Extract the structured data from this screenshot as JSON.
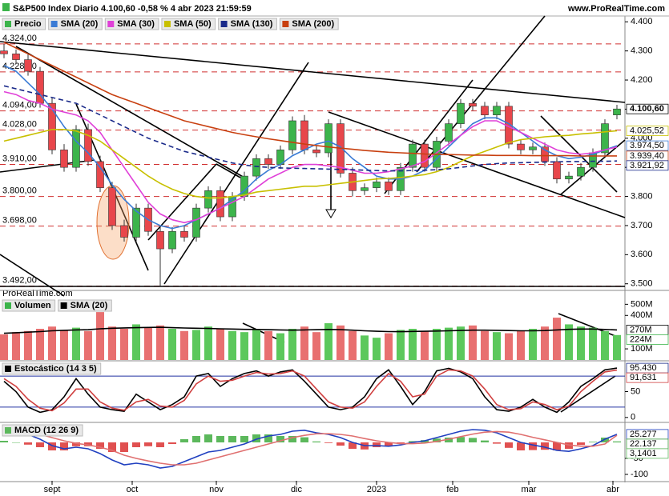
{
  "chart_data": [
    {
      "type": "candlestick",
      "title": "S&P500 Index Diario 4.100,60 -0,58 % 4 abr 2023 21:59:59",
      "source": "www.ProRealTime.com",
      "watermark": "ProRealTime.com",
      "name": "Precio",
      "up_color": "#3cb44b",
      "down_color": "#e8464b",
      "x": [
        1,
        4,
        7,
        10,
        13,
        16,
        19,
        22,
        25,
        28,
        31,
        34,
        37,
        40,
        43,
        46,
        49,
        52,
        55,
        58,
        61,
        64,
        67,
        70,
        73,
        76,
        79,
        82,
        85,
        88,
        91,
        94,
        97,
        100,
        103,
        106,
        109,
        112,
        115,
        118,
        121,
        124,
        127,
        130,
        133,
        136,
        139,
        142,
        145,
        148,
        151,
        154
      ],
      "open": [
        4300,
        4290,
        4270,
        4230,
        4120,
        3960,
        3900,
        4030,
        3920,
        3830,
        3700,
        3660,
        3760,
        3680,
        3620,
        3680,
        3660,
        3760,
        3820,
        3730,
        3800,
        3870,
        3930,
        3910,
        3960,
        4060,
        3960,
        3950,
        4050,
        3880,
        3820,
        3830,
        3850,
        3820,
        3900,
        3980,
        3900,
        3990,
        4050,
        4120,
        4110,
        4080,
        4110,
        3980,
        3960,
        3970,
        3920,
        3860,
        3870,
        3900,
        3950,
        4080
      ],
      "high": [
        4324,
        4305,
        4290,
        4245,
        4140,
        3980,
        4045,
        4050,
        3940,
        3850,
        3720,
        3775,
        3775,
        3700,
        3695,
        3700,
        3775,
        3835,
        3835,
        3815,
        3885,
        3945,
        3945,
        3975,
        4075,
        4080,
        3975,
        4065,
        4065,
        3900,
        3845,
        3865,
        3865,
        3915,
        3995,
        3995,
        4005,
        4065,
        4135,
        4135,
        4125,
        4125,
        4125,
        3995,
        3985,
        3985,
        3935,
        3885,
        3915,
        3965,
        4065,
        4115
      ],
      "low": [
        4275,
        4255,
        4215,
        4105,
        3945,
        3885,
        3885,
        3905,
        3815,
        3685,
        3645,
        3645,
        3665,
        3492,
        3605,
        3645,
        3645,
        3745,
        3715,
        3715,
        3785,
        3855,
        3895,
        3895,
        3945,
        3945,
        3935,
        3935,
        3865,
        3800,
        3805,
        3815,
        3805,
        3805,
        3885,
        3885,
        3885,
        3975,
        4035,
        4095,
        4065,
        4065,
        3965,
        3945,
        3945,
        3905,
        3845,
        3845,
        3855,
        3885,
        3935,
        4065
      ],
      "close": [
        4290,
        4270,
        4230,
        4120,
        3960,
        3900,
        4030,
        3920,
        3830,
        3700,
        3660,
        3760,
        3680,
        3620,
        3680,
        3660,
        3760,
        3820,
        3730,
        3800,
        3870,
        3930,
        3910,
        3960,
        4060,
        3960,
        3950,
        4050,
        3880,
        3820,
        3830,
        3850,
        3820,
        3900,
        3980,
        3900,
        3990,
        4050,
        4120,
        4110,
        4080,
        4110,
        3980,
        3960,
        3970,
        3920,
        3860,
        3870,
        3900,
        3950,
        4050,
        4100.6
      ],
      "last_value_label": "4.100,60",
      "xlim": [
        0,
        156
      ],
      "xticks": [
        {
          "value": 13,
          "label": "sept"
        },
        {
          "value": 33,
          "label": "oct"
        },
        {
          "value": 54,
          "label": "nov"
        },
        {
          "value": 74,
          "label": "dic"
        },
        {
          "value": 94,
          "label": "2023"
        },
        {
          "value": 113,
          "label": "feb"
        },
        {
          "value": 132,
          "label": "mar"
        },
        {
          "value": 153,
          "label": "abr"
        }
      ],
      "ylim": [
        3480,
        4420
      ],
      "yticks": [
        {
          "value": 3500,
          "label": "3.500"
        },
        {
          "value": 3600,
          "label": "3.600"
        },
        {
          "value": 3700,
          "label": "3.700"
        },
        {
          "value": 3800,
          "label": "3.800"
        },
        {
          "value": 3900,
          "label": "3.900"
        },
        {
          "value": 4000,
          "label": "4.000"
        },
        {
          "value": 4100,
          "label": "4.100"
        },
        {
          "value": 4200,
          "label": "4.200"
        },
        {
          "value": 4300,
          "label": "4.300"
        },
        {
          "value": 4400,
          "label": "4.400"
        }
      ],
      "levels": [
        {
          "value": 4324,
          "label": "4.324,00"
        },
        {
          "value": 4228,
          "label": "4.228,00"
        },
        {
          "value": 4094,
          "label": "4.094,00"
        },
        {
          "value": 4028,
          "label": "4.028,00"
        },
        {
          "value": 3910,
          "label": "3.910,00"
        },
        {
          "value": 3800,
          "label": "3.800,00"
        },
        {
          "value": 3698,
          "label": "3.698,00"
        },
        {
          "value": 3492,
          "label": "3.492,00"
        }
      ],
      "series": [
        {
          "name": "SMA (20)",
          "color": "#3a7bd5",
          "mark": "line",
          "last_value_label": "3.974,50",
          "values": [
            4250,
            4230,
            4190,
            4150,
            4100,
            4040,
            3990,
            3950,
            3900,
            3840,
            3790,
            3750,
            3720,
            3700,
            3690,
            3700,
            3720,
            3740,
            3760,
            3790,
            3820,
            3860,
            3890,
            3910,
            3940,
            3960,
            3980,
            3990,
            3970,
            3930,
            3900,
            3870,
            3860,
            3860,
            3870,
            3890,
            3930,
            3970,
            4010,
            4050,
            4070,
            4070,
            4050,
            4020,
            3990,
            3960,
            3940,
            3930,
            3935,
            3945,
            3960,
            3974.5
          ]
        },
        {
          "name": "SMA (30)",
          "color": "#e040d8",
          "mark": "line",
          "values": [
            4160,
            4150,
            4130,
            4120,
            4100,
            4090,
            4080,
            4060,
            4020,
            3960,
            3900,
            3840,
            3780,
            3740,
            3720,
            3710,
            3720,
            3740,
            3760,
            3780,
            3800,
            3830,
            3860,
            3880,
            3900,
            3910,
            3910,
            3905,
            3900,
            3890,
            3880,
            3880,
            3885,
            3895,
            3905,
            3920,
            3950,
            3980,
            4010,
            4040,
            4060,
            4060,
            4040,
            4020,
            4000,
            3980,
            3960,
            3950,
            3945,
            3950,
            3960,
            3970
          ]
        },
        {
          "name": "SMA (50)",
          "color": "#c8c000",
          "mark": "line",
          "last_value_label": "4.025,52",
          "values": [
            3990,
            4000,
            4010,
            4020,
            4030,
            4030,
            4025,
            4010,
            3990,
            3960,
            3930,
            3900,
            3870,
            3845,
            3825,
            3810,
            3800,
            3795,
            3795,
            3800,
            3805,
            3815,
            3820,
            3825,
            3830,
            3835,
            3835,
            3840,
            3845,
            3850,
            3855,
            3860,
            3862,
            3865,
            3870,
            3875,
            3885,
            3900,
            3920,
            3940,
            3955,
            3970,
            3985,
            3995,
            4000,
            4005,
            4008,
            4010,
            4015,
            4018,
            4022,
            4025.52
          ]
        },
        {
          "name": "SMA (130)",
          "color": "#1a2a8a",
          "mark": "line",
          "dash": true,
          "last_value_label": "3.921,92",
          "values": [
            4180,
            4170,
            4160,
            4150,
            4140,
            4130,
            4120,
            4100,
            4080,
            4060,
            4040,
            4020,
            4000,
            3985,
            3970,
            3955,
            3945,
            3935,
            3925,
            3915,
            3908,
            3903,
            3900,
            3898,
            3897,
            3896,
            3895,
            3894,
            3893,
            3892,
            3890,
            3889,
            3888,
            3888,
            3889,
            3890,
            3892,
            3895,
            3900,
            3905,
            3910,
            3913,
            3915,
            3916,
            3917,
            3918,
            3919,
            3920,
            3920,
            3921,
            3921,
            3921.92
          ]
        },
        {
          "name": "SMA (200)",
          "color": "#c84010",
          "mark": "line",
          "last_value_label": "3.939,40",
          "values": [
            4330,
            4310,
            4290,
            4270,
            4250,
            4230,
            4210,
            4190,
            4170,
            4150,
            4135,
            4120,
            4105,
            4090,
            4075,
            4060,
            4050,
            4040,
            4030,
            4020,
            4012,
            4005,
            3998,
            3992,
            3986,
            3980,
            3975,
            3970,
            3966,
            3962,
            3958,
            3955,
            3952,
            3950,
            3948,
            3946,
            3945,
            3944,
            3943,
            3942,
            3942,
            3941,
            3941,
            3941,
            3940,
            3940,
            3940,
            3940,
            3939,
            3939,
            3939,
            3939.4
          ]
        }
      ]
    },
    {
      "type": "combo",
      "ylim": [
        0,
        560
      ],
      "yticks": [
        {
          "value": 100,
          "label": "100M"
        },
        {
          "value": 400,
          "label": "400M"
        },
        {
          "value": 500,
          "label": "500M"
        }
      ],
      "series": [
        {
          "name": "Volumen",
          "mark": "bar",
          "color": "#3cb44b",
          "up_color": "#5cc85c",
          "down_color": "#e87070",
          "last_value_label": "224M",
          "values": [
            230,
            250,
            260,
            280,
            300,
            270,
            290,
            260,
            430,
            300,
            280,
            320,
            290,
            310,
            280,
            260,
            270,
            300,
            280,
            260,
            250,
            270,
            260,
            240,
            280,
            300,
            250,
            330,
            310,
            260,
            220,
            200,
            240,
            270,
            280,
            260,
            280,
            290,
            300,
            310,
            260,
            250,
            240,
            260,
            280,
            300,
            380,
            320,
            300,
            290,
            260,
            224
          ]
        },
        {
          "name": "SMA (20)",
          "mark": "line",
          "color": "#000000",
          "last_value_label": "270M",
          "values": [
            240,
            245,
            250,
            255,
            262,
            266,
            270,
            272,
            280,
            285,
            288,
            290,
            292,
            294,
            290,
            287,
            285,
            283,
            280,
            278,
            275,
            274,
            272,
            270,
            268,
            270,
            272,
            274,
            272,
            268,
            262,
            258,
            255,
            254,
            256,
            258,
            260,
            262,
            265,
            268,
            268,
            266,
            264,
            262,
            262,
            264,
            270,
            275,
            278,
            278,
            274,
            270
          ]
        }
      ]
    },
    {
      "type": "combo",
      "title": "Estocástico (14 3 5)",
      "ylim": [
        -8,
        108
      ],
      "yticks": [
        0,
        50
      ],
      "levels": [
        20,
        80
      ],
      "series": [
        {
          "mark": "line",
          "color": "#000000",
          "badge_color": "#1a2a8a",
          "last_value_label": "95.430",
          "values": [
            70,
            50,
            20,
            10,
            15,
            40,
            75,
            45,
            20,
            15,
            12,
            45,
            30,
            15,
            25,
            40,
            80,
            85,
            60,
            75,
            85,
            90,
            80,
            88,
            92,
            70,
            45,
            20,
            15,
            20,
            40,
            75,
            92,
            60,
            25,
            50,
            90,
            95,
            88,
            75,
            40,
            15,
            12,
            20,
            35,
            20,
            10,
            30,
            60,
            75,
            92,
            95.43
          ]
        },
        {
          "mark": "line",
          "color": "#d04040",
          "last_value_label": "91,631",
          "values": [
            75,
            60,
            35,
            18,
            13,
            28,
            55,
            55,
            30,
            18,
            14,
            30,
            35,
            22,
            20,
            33,
            65,
            80,
            70,
            72,
            80,
            87,
            84,
            85,
            90,
            80,
            55,
            30,
            20,
            18,
            30,
            60,
            85,
            70,
            40,
            45,
            80,
            92,
            90,
            80,
            55,
            25,
            15,
            17,
            30,
            25,
            15,
            22,
            50,
            70,
            88,
            91.631
          ]
        }
      ]
    },
    {
      "type": "combo",
      "title": "MACD (12 26 9)",
      "ylim": [
        -120,
        60
      ],
      "yticks": [
        -100,
        -50
      ],
      "series": [
        {
          "mark": "bar",
          "color": "#5cb85c",
          "up_color": "#5cb85c",
          "down_color": "#e05050",
          "last_value_label": "3,1401",
          "values": [
            5,
            0,
            -7,
            -15,
            -25,
            -25,
            -12,
            -12,
            -20,
            -30,
            -30,
            -15,
            -12,
            -15,
            -5,
            10,
            20,
            25,
            20,
            20,
            20,
            25,
            25,
            20,
            20,
            16,
            3,
            -2,
            -10,
            -20,
            -22,
            -15,
            -12,
            -4,
            4,
            7,
            12,
            15,
            17,
            14,
            6,
            -4,
            -17,
            -25,
            -24,
            -23,
            -25,
            -20,
            -8,
            2,
            15,
            3.1401
          ]
        },
        {
          "mark": "line",
          "color": "#2040c0",
          "last_value_label": "25.277",
          "values": [
            40,
            35,
            25,
            10,
            -10,
            -20,
            -15,
            -20,
            -35,
            -55,
            -70,
            -65,
            -70,
            -80,
            -75,
            -60,
            -45,
            -30,
            -25,
            -15,
            -5,
            10,
            20,
            25,
            35,
            38,
            30,
            25,
            15,
            0,
            -10,
            -10,
            -12,
            -8,
            0,
            5,
            15,
            25,
            35,
            40,
            38,
            30,
            15,
            0,
            -8,
            -15,
            -25,
            -28,
            -20,
            -10,
            10,
            25.277
          ]
        },
        {
          "mark": "line",
          "color": "#e07070",
          "badge_color": "#3a9a3a",
          "last_value_label": "22.137",
          "values": [
            35,
            35,
            32,
            25,
            15,
            5,
            -3,
            -8,
            -15,
            -25,
            -40,
            -50,
            -58,
            -65,
            -70,
            -70,
            -65,
            -55,
            -45,
            -35,
            -25,
            -15,
            -5,
            5,
            15,
            22,
            27,
            27,
            25,
            20,
            12,
            5,
            0,
            -4,
            -4,
            -2,
            3,
            10,
            18,
            26,
            32,
            34,
            32,
            25,
            16,
            8,
            0,
            -8,
            -12,
            -12,
            -5,
            22.137
          ]
        }
      ]
    }
  ]
}
